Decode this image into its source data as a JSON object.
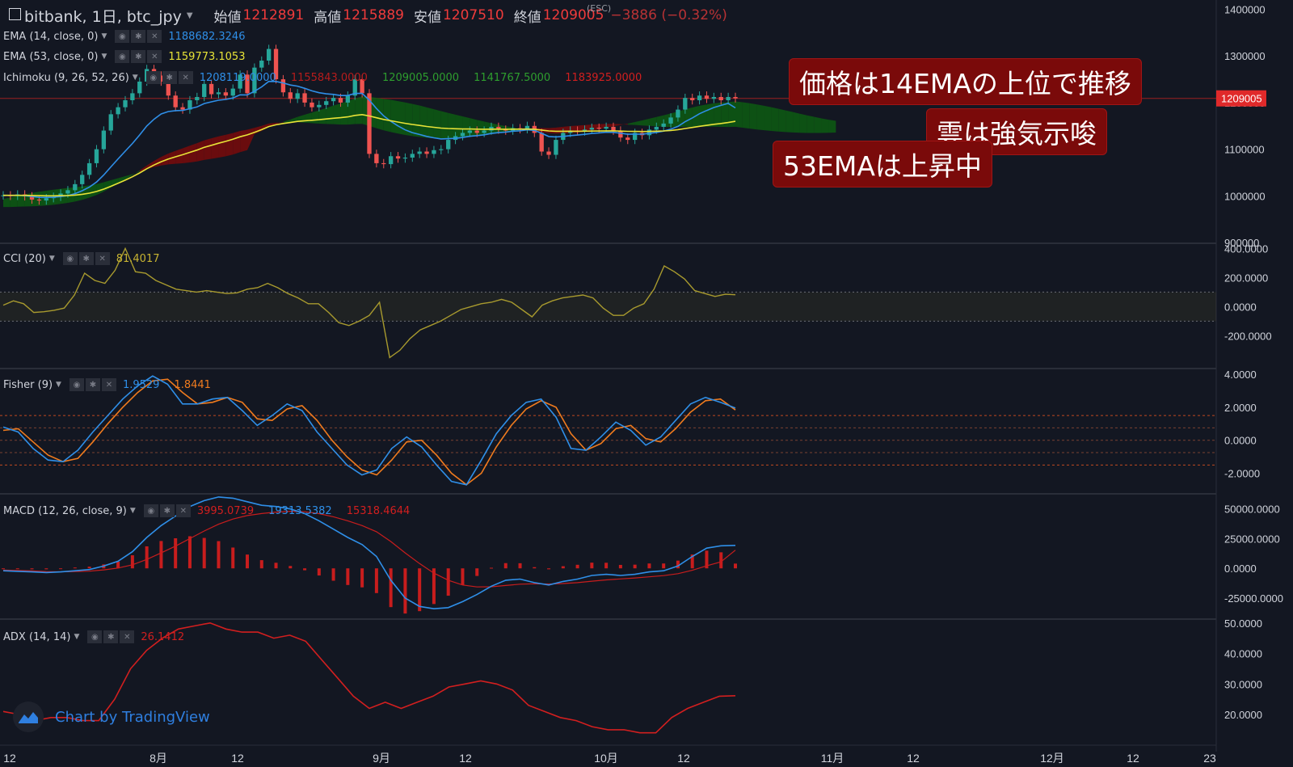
{
  "header": {
    "title": "bitbank, 1日, btc_jpy",
    "open_label": "始値",
    "open": "1212891",
    "high_label": "高値",
    "high": "1215889",
    "low_label": "安値",
    "low": "1207510",
    "close_label": "終値",
    "close": "1209005",
    "change": "−3886 (−0.32%)",
    "esc_hint": "(ESC)"
  },
  "indicators": {
    "ema14": {
      "label": "EMA (14, close, 0)",
      "value": "1188682.3246",
      "color": "#2f8fe8"
    },
    "ema53": {
      "label": "EMA (53, close, 0)",
      "value": "1159773.1053",
      "color": "#e8e337"
    },
    "ichimoku": {
      "label": "Ichimoku (9, 26, 52, 26)",
      "v1": "1208119.0000",
      "v2": "1155843.0000",
      "v3": "1209005.0000",
      "v4": "1141767.5000",
      "v5": "1183925.0000"
    },
    "cci": {
      "label": "CCI (20)",
      "value": "81.4017"
    },
    "fisher": {
      "label": "Fisher (9)",
      "v1": "1.9529",
      "v2": "1.8441"
    },
    "macd": {
      "label": "MACD (12, 26, close, 9)",
      "hist": "3995.0739",
      "macd": "19313.5382",
      "signal": "15318.4644"
    },
    "adx": {
      "label": "ADX (14, 14)",
      "value": "26.1412"
    }
  },
  "annotations": {
    "a1": "価格は14EMAの上位で推移",
    "a2": "雲は強気示唆",
    "a3": "53EMAは上昇中"
  },
  "watermark": "Chart by TradingView",
  "axes": {
    "price_ticks": [
      "1400000",
      "1300000",
      "1200000",
      "1100000",
      "1000000",
      "900000"
    ],
    "last_price": "1209005",
    "cci_ticks": [
      "400.0000",
      "200.0000",
      "0.0000",
      "-200.0000"
    ],
    "fisher_ticks": [
      "4.0000",
      "2.0000",
      "0.0000",
      "-2.0000"
    ],
    "macd_ticks": [
      "50000.0000",
      "25000.0000",
      "0.0000",
      "-25000.0000"
    ],
    "adx_ticks": [
      "50.0000",
      "40.0000",
      "30.0000",
      "20.0000"
    ],
    "time_ticks": [
      "12",
      "8月",
      "12",
      "9月",
      "12",
      "10月",
      "12",
      "11月",
      "12",
      "12月",
      "12",
      "23"
    ]
  },
  "chart_data": {
    "type": "line",
    "price": {
      "close": [
        1001000,
        1000000,
        1003000,
        999000,
        992000,
        990000,
        995000,
        998000,
        1005000,
        1012000,
        1025000,
        1045000,
        1070000,
        1100000,
        1140000,
        1175000,
        1190000,
        1205000,
        1220000,
        1245000,
        1272000,
        1258000,
        1245000,
        1215000,
        1190000,
        1185000,
        1205000,
        1212000,
        1240000,
        1218000,
        1222000,
        1215000,
        1230000,
        1260000,
        1220000,
        1275000,
        1290000,
        1315000,
        1250000,
        1222000,
        1208000,
        1220000,
        1200000,
        1190000,
        1195000,
        1203000,
        1210000,
        1200000,
        1215000,
        1250000,
        1220000,
        1090000,
        1070000,
        1068000,
        1085000,
        1080000,
        1082000,
        1090000,
        1095000,
        1090000,
        1098000,
        1100000,
        1120000,
        1128000,
        1135000,
        1140000,
        1135000,
        1140000,
        1148000,
        1142000,
        1140000,
        1145000,
        1143000,
        1150000,
        1135000,
        1095000,
        1088000,
        1120000,
        1135000,
        1140000,
        1138000,
        1142000,
        1146000,
        1144000,
        1148000,
        1140000,
        1125000,
        1120000,
        1135000,
        1130000,
        1142000,
        1148000,
        1155000,
        1168000,
        1185000,
        1210000,
        1205000,
        1215000,
        1208000,
        1212000,
        1205000,
        1212000,
        1209005
      ],
      "ema14": [
        1001000,
        1000800,
        1001100,
        1000400,
        998600,
        996800,
        996600,
        997000,
        998400,
        1000500,
        1004700,
        1010900,
        1018800,
        1029600,
        1044700,
        1062100,
        1079300,
        1095900,
        1112400,
        1130500,
        1149800,
        1164200,
        1175600,
        1180800,
        1182700,
        1183300,
        1186900,
        1190600,
        1197900,
        1201600,
        1205000,
        1206800,
        1209900,
        1216600,
        1216400,
        1224300,
        1233700,
        1245400,
        1245300,
        1242200,
        1237700,
        1235200,
        1230500,
        1225100,
        1221100,
        1218700,
        1217500,
        1215100,
        1215100,
        1219700,
        1219800,
        1205300,
        1187300,
        1171400,
        1159900,
        1149900,
        1141500,
        1135500,
        1131500,
        1127400,
        1124500,
        1122100,
        1122500,
        1123300,
        1125200,
        1127800,
        1129100,
        1130900,
        1133800,
        1135500,
        1136800,
        1138600,
        1139500,
        1141600,
        1140400,
        1134100,
        1127300,
        1126300,
        1127500,
        1129200,
        1130300,
        1131900,
        1133800,
        1135000,
        1136400,
        1136200,
        1134400,
        1132100,
        1132500,
        1132200,
        1133900,
        1136100,
        1138900,
        1143100,
        1148900,
        1159000,
        1167100,
        1176200,
        1183100,
        1189400,
        1193900,
        1198300,
        1188682
      ],
      "ema53": [
        1001000,
        1001000,
        1001100,
        1001000,
        1000700,
        1000300,
        1000100,
        1000100,
        1000300,
        1000700,
        1001600,
        1003300,
        1005800,
        1009300,
        1014400,
        1020500,
        1026900,
        1033700,
        1041000,
        1049100,
        1058000,
        1066000,
        1073200,
        1079000,
        1083800,
        1088200,
        1093200,
        1098200,
        1104000,
        1108400,
        1112800,
        1116800,
        1121300,
        1126800,
        1130700,
        1136200,
        1142000,
        1148600,
        1152400,
        1155100,
        1157200,
        1159700,
        1161100,
        1162100,
        1163300,
        1164800,
        1166500,
        1167700,
        1169400,
        1172400,
        1174300,
        1171200,
        1167500,
        1163900,
        1161100,
        1158200,
        1155500,
        1153100,
        1151000,
        1148800,
        1147000,
        1145300,
        1144400,
        1143800,
        1143400,
        1143300,
        1143000,
        1142900,
        1143100,
        1143000,
        1142900,
        1143000,
        1143000,
        1143200,
        1142900,
        1141100,
        1139200,
        1138500,
        1138500,
        1138600,
        1138500,
        1138600,
        1138900,
        1139100,
        1139400,
        1139400,
        1138900,
        1138300,
        1138200,
        1138000,
        1138200,
        1138600,
        1139200,
        1140300,
        1141900,
        1144400,
        1146600,
        1149100,
        1151200,
        1153400,
        1155200,
        1157200,
        1159773
      ]
    },
    "cci": [
      10,
      40,
      20,
      -40,
      -35,
      -25,
      -10,
      80,
      230,
      180,
      160,
      250,
      400,
      240,
      230,
      180,
      150,
      120,
      110,
      100,
      110,
      100,
      90,
      95,
      120,
      130,
      160,
      130,
      90,
      60,
      20,
      20,
      -40,
      -110,
      -130,
      -100,
      -60,
      30,
      -350,
      -300,
      -220,
      -160,
      -130,
      -100,
      -60,
      -20,
      0,
      20,
      30,
      50,
      30,
      -20,
      -70,
      10,
      40,
      60,
      70,
      80,
      60,
      -10,
      -60,
      -60,
      -10,
      20,
      120,
      280,
      240,
      190,
      110,
      90,
      70,
      85,
      81.4
    ],
    "fisher": {
      "fisher": [
        0.8,
        0.5,
        -0.5,
        -1.2,
        -1.3,
        -0.6,
        0.5,
        1.5,
        2.5,
        3.3,
        3.9,
        3.4,
        2.2,
        2.2,
        2.5,
        2.6,
        1.8,
        0.9,
        1.5,
        2.2,
        1.8,
        0.5,
        -0.5,
        -1.5,
        -2.1,
        -1.8,
        -0.5,
        0.2,
        -0.4,
        -1.5,
        -2.5,
        -2.7,
        -1.2,
        0.4,
        1.5,
        2.3,
        2.5,
        1.4,
        -0.5,
        -0.6,
        0.2,
        1.1,
        0.6,
        -0.3,
        0.2,
        1.2,
        2.2,
        2.6,
        2.3,
        1.95
      ],
      "trigger": [
        0.6,
        0.7,
        -0.1,
        -0.9,
        -1.3,
        -1.1,
        -0.1,
        1.0,
        2.0,
        2.9,
        3.6,
        3.7,
        2.9,
        2.2,
        2.3,
        2.6,
        2.3,
        1.3,
        1.2,
        1.9,
        2.1,
        1.2,
        0.0,
        -1.0,
        -1.8,
        -2.1,
        -1.2,
        -0.1,
        0.0,
        -0.9,
        -2.0,
        -2.7,
        -2.0,
        -0.4,
        0.9,
        1.9,
        2.4,
        2.0,
        0.4,
        -0.6,
        -0.2,
        0.7,
        0.9,
        0.1,
        -0.1,
        0.7,
        1.7,
        2.4,
        2.5,
        1.84
      ]
    },
    "macd": {
      "macd": [
        -2000,
        -2500,
        -3000,
        -3500,
        -3000,
        -2000,
        -1000,
        2000,
        6000,
        14000,
        26000,
        36000,
        44000,
        52000,
        57000,
        60000,
        59000,
        56000,
        53000,
        52000,
        50000,
        46000,
        40000,
        33000,
        26000,
        20000,
        10000,
        -10000,
        -25000,
        -32000,
        -34000,
        -33000,
        -28000,
        -22000,
        -15000,
        -10000,
        -9000,
        -12000,
        -14000,
        -11000,
        -9000,
        -6000,
        -5000,
        -6000,
        -5000,
        -3000,
        -2000,
        2000,
        10000,
        17000,
        19000,
        19313.5
      ],
      "signal": [
        -1500,
        -1800,
        -2200,
        -2700,
        -2900,
        -2700,
        -2400,
        -1300,
        300,
        3000,
        7500,
        13000,
        18700,
        25000,
        31400,
        37100,
        41500,
        44400,
        46100,
        47300,
        48000,
        47600,
        46000,
        43400,
        40000,
        36000,
        30800,
        22600,
        13000,
        4000,
        -4000,
        -10000,
        -14000,
        -15600,
        -15500,
        -14400,
        -13300,
        -13000,
        -13200,
        -12800,
        -12000,
        -10800,
        -9700,
        -8900,
        -8100,
        -7100,
        -6100,
        -4500,
        -1600,
        2100,
        5500,
        15318.5
      ],
      "hist": [
        -500,
        -700,
        -800,
        -800,
        -100,
        700,
        1400,
        3300,
        5700,
        11000,
        18500,
        23000,
        25300,
        27000,
        25600,
        22900,
        17500,
        11600,
        6900,
        4700,
        2000,
        -1600,
        -6000,
        -10400,
        -14000,
        -16000,
        -20800,
        -32600,
        -38000,
        -36000,
        -30000,
        -23000,
        -14000,
        -6400,
        500,
        4400,
        4300,
        1000,
        -800,
        1800,
        3000,
        4800,
        4700,
        2900,
        3100,
        4100,
        4100,
        6500,
        11600,
        14900,
        13500,
        3995
      ]
    },
    "adx": [
      21,
      20,
      18,
      19,
      19,
      18,
      18,
      25,
      35,
      41,
      45,
      48,
      49,
      50,
      48,
      47,
      47,
      45,
      46,
      44,
      38,
      32,
      26,
      22,
      24,
      22,
      24,
      26,
      29,
      30,
      31,
      30,
      28,
      23,
      21,
      19,
      18,
      16,
      15,
      15,
      14,
      14,
      19,
      22,
      24,
      26,
      26.14
    ],
    "price_range": [
      900000,
      1420000
    ],
    "cci_range": [
      -420,
      430
    ],
    "fisher_range": [
      -3.2,
      4.3
    ],
    "macd_range": [
      -42000,
      62000
    ],
    "adx_range": [
      11,
      51
    ]
  }
}
